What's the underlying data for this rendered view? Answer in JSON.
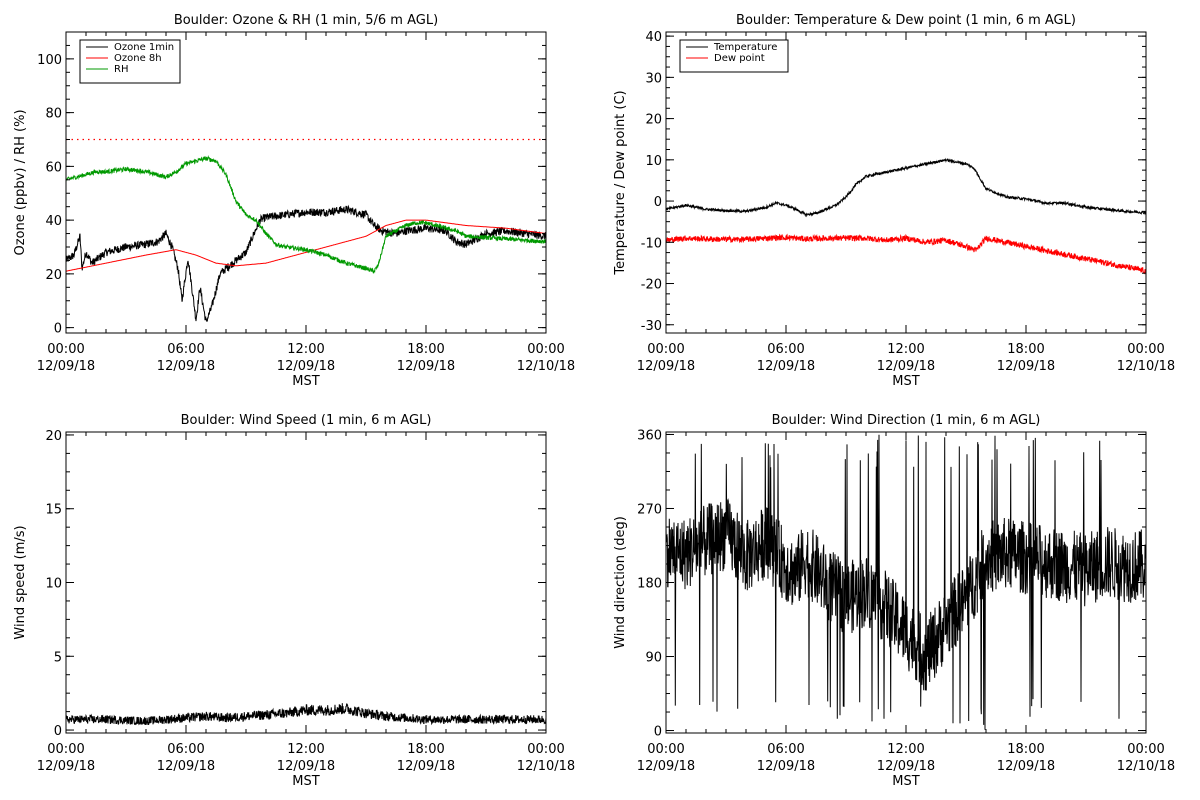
{
  "chart_data": [
    {
      "id": "ozone_rh",
      "type": "line",
      "title": "Boulder: Ozone & RH (1 min, 5/6 m AGL)",
      "xlabel": "MST",
      "ylabel": "Ozone (ppbv) / RH (%)",
      "ylim": [
        -2,
        110
      ],
      "xlim": [
        0,
        24
      ],
      "yticks": [
        0,
        20,
        40,
        60,
        80,
        100
      ],
      "xticks": [
        {
          "time": "00:00",
          "date": "12/09/18"
        },
        {
          "time": "06:00",
          "date": "12/09/18"
        },
        {
          "time": "12:00",
          "date": "12/09/18"
        },
        {
          "time": "18:00",
          "date": "12/09/18"
        },
        {
          "time": "00:00",
          "date": "12/10/18"
        }
      ],
      "legend_position": "top-left",
      "threshold": {
        "y": 70,
        "color": "#ff0000",
        "style": "dotted"
      },
      "series": [
        {
          "name": "Ozone 1min",
          "color": "#000000",
          "noise": 1.5,
          "x": [
            0,
            0.4,
            0.7,
            0.8,
            1.0,
            1.3,
            2,
            3,
            4,
            4.6,
            5.0,
            5.3,
            5.6,
            5.8,
            6.1,
            6.5,
            6.7,
            7.0,
            7.3,
            7.7,
            8.0,
            8.5,
            9.0,
            9.4,
            9.7,
            10,
            11,
            12,
            13,
            14,
            15,
            15.4,
            15.8,
            16.5,
            17,
            18,
            19,
            19.5,
            20,
            21,
            22,
            23,
            24
          ],
          "y": [
            25,
            27,
            34,
            22,
            28,
            24,
            28,
            30,
            31,
            32,
            35,
            30,
            22,
            10,
            26,
            3,
            15,
            2,
            8,
            20,
            22,
            25,
            28,
            35,
            40,
            41,
            42,
            43,
            43,
            44,
            42,
            38,
            36,
            35,
            36,
            37,
            36,
            32,
            31,
            35,
            36,
            35,
            34
          ]
        },
        {
          "name": "Ozone 8h",
          "color": "#ff0000",
          "noise": 0,
          "x": [
            0,
            2,
            4,
            5.5,
            6.5,
            7.5,
            8.5,
            10,
            11,
            12,
            13,
            14,
            15,
            16,
            17,
            18,
            19,
            20,
            22,
            24
          ],
          "y": [
            21,
            24,
            27,
            29,
            27,
            24,
            23,
            24,
            26,
            28,
            30,
            32,
            34,
            38,
            40,
            40,
            39,
            38,
            37,
            35
          ]
        },
        {
          "name": "RH",
          "color": "#009900",
          "noise": 0.8,
          "x": [
            0,
            0.5,
            1,
            1.5,
            2,
            3,
            4,
            5,
            5.5,
            6,
            6.5,
            7,
            7.5,
            8,
            8.5,
            9,
            9.5,
            10,
            10.5,
            11,
            12,
            13,
            14,
            15,
            15.4,
            15.6,
            16,
            17,
            17.5,
            18,
            18.5,
            19,
            19.5,
            20,
            22,
            24
          ],
          "y": [
            55,
            56,
            57,
            58,
            58,
            59,
            58,
            56,
            58,
            61,
            62,
            63,
            62,
            57,
            47,
            42,
            40,
            35,
            31,
            30,
            29,
            27,
            24,
            22,
            21,
            23,
            34,
            38,
            39,
            39,
            38,
            37,
            36,
            34,
            33,
            32
          ]
        }
      ]
    },
    {
      "id": "temp_dew",
      "type": "line",
      "title": "Boulder: Temperature & Dew point (1 min, 6 m AGL)",
      "xlabel": "MST",
      "ylabel": "Temperature / Dew point (C)",
      "ylim": [
        -32,
        41
      ],
      "xlim": [
        0,
        24
      ],
      "yticks": [
        -30,
        -20,
        -10,
        0,
        10,
        20,
        30,
        40
      ],
      "xticks": [
        {
          "time": "00:00",
          "date": "12/09/18"
        },
        {
          "time": "06:00",
          "date": "12/09/18"
        },
        {
          "time": "12:00",
          "date": "12/09/18"
        },
        {
          "time": "18:00",
          "date": "12/09/18"
        },
        {
          "time": "00:00",
          "date": "12/10/18"
        }
      ],
      "legend_position": "top-left",
      "series": [
        {
          "name": "Temperature",
          "color": "#000000",
          "noise": 0.3,
          "x": [
            0,
            0.5,
            1,
            2,
            3,
            4,
            4.5,
            5,
            5.5,
            6,
            6.5,
            7,
            7.5,
            8,
            8.5,
            9,
            9.5,
            10,
            11,
            12,
            13,
            14,
            15,
            15.4,
            16,
            17,
            18,
            19,
            20,
            21,
            22,
            23,
            24
          ],
          "y": [
            -2,
            -1.5,
            -1,
            -2,
            -2.3,
            -2.5,
            -2,
            -1.5,
            -0.5,
            -1,
            -2,
            -3.3,
            -3,
            -2,
            -1,
            1,
            4,
            6,
            7,
            8,
            9,
            10,
            9,
            8,
            3,
            1,
            0.5,
            -0.5,
            -0.5,
            -1.5,
            -2,
            -2.5,
            -2.8
          ]
        },
        {
          "name": "Dew point",
          "color": "#ff0000",
          "noise": 0.7,
          "x": [
            0,
            1,
            2,
            3,
            4,
            5,
            6,
            7,
            8,
            9,
            10,
            11,
            12,
            13,
            14,
            15,
            15.5,
            16,
            17,
            18,
            19,
            20,
            21,
            22,
            23,
            24
          ],
          "y": [
            -9.5,
            -9,
            -9.2,
            -9.3,
            -9.3,
            -9,
            -8.8,
            -9.2,
            -9,
            -9,
            -9,
            -9.5,
            -9,
            -10,
            -9.5,
            -11,
            -12,
            -9,
            -10,
            -11,
            -12,
            -13,
            -14,
            -15,
            -16,
            -17
          ]
        }
      ]
    },
    {
      "id": "wind_speed",
      "type": "line",
      "title": "Boulder: Wind Speed (1 min, 6 m AGL)",
      "xlabel": "MST",
      "ylabel": "Wind speed (m/s)",
      "ylim": [
        -0.2,
        20.2
      ],
      "xlim": [
        0,
        24
      ],
      "yticks": [
        0,
        5,
        10,
        15,
        20
      ],
      "xticks": [
        {
          "time": "00:00",
          "date": "12/09/18"
        },
        {
          "time": "06:00",
          "date": "12/09/18"
        },
        {
          "time": "12:00",
          "date": "12/09/18"
        },
        {
          "time": "18:00",
          "date": "12/09/18"
        },
        {
          "time": "00:00",
          "date": "12/10/18"
        }
      ],
      "series": [
        {
          "color": "#000000",
          "noise": 0.35,
          "x": [
            0,
            2,
            4,
            6,
            7,
            8,
            9,
            10,
            11,
            12,
            13,
            14,
            15,
            16,
            17,
            18,
            20,
            22,
            24
          ],
          "y": [
            0.6,
            0.6,
            0.5,
            0.7,
            0.8,
            0.7,
            0.8,
            0.9,
            1.0,
            1.2,
            1.2,
            1.3,
            1.0,
            0.8,
            0.7,
            0.6,
            0.6,
            0.6,
            0.6
          ]
        }
      ]
    },
    {
      "id": "wind_dir",
      "type": "line",
      "title": "Boulder: Wind Direction (1 min, 6 m AGL)",
      "xlabel": "MST",
      "ylabel": "Wind direction (deg)",
      "ylim": [
        -3,
        363
      ],
      "xlim": [
        0,
        24
      ],
      "yticks": [
        0,
        90,
        180,
        270,
        360
      ],
      "xticks": [
        {
          "time": "00:00",
          "date": "12/09/18"
        },
        {
          "time": "06:00",
          "date": "12/09/18"
        },
        {
          "time": "12:00",
          "date": "12/09/18"
        },
        {
          "time": "18:00",
          "date": "12/09/18"
        },
        {
          "time": "00:00",
          "date": "12/10/18"
        }
      ],
      "series": [
        {
          "color": "#000000",
          "noise": 45,
          "x": [
            0,
            1,
            2,
            3,
            4,
            5,
            6,
            6.5,
            7,
            8,
            9,
            10,
            11,
            12,
            13,
            14,
            15,
            16,
            17,
            18,
            19,
            20,
            21,
            22,
            23,
            24
          ],
          "y": [
            220,
            215,
            230,
            240,
            210,
            230,
            200,
            190,
            210,
            180,
            160,
            170,
            150,
            120,
            90,
            130,
            160,
            210,
            215,
            210,
            205,
            200,
            195,
            205,
            200,
            200
          ]
        }
      ]
    }
  ]
}
